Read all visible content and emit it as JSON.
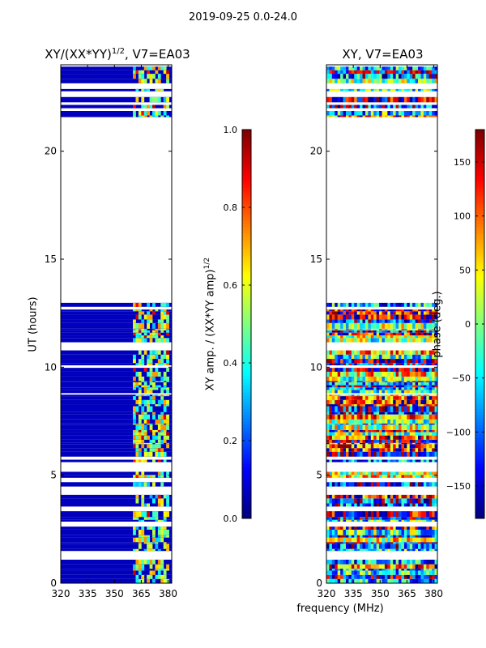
{
  "figure": {
    "suptitle": "2019-09-25 0.0-24.0",
    "common_xlabel": "frequency (MHz)"
  },
  "chart_data": [
    {
      "type": "heatmap",
      "title_text": "XY/(XX*YY)",
      "title_superscript": "1/2",
      "title_suffix": ", V7=EA03",
      "xlabel": "",
      "ylabel": "UT (hours)",
      "xlim": [
        320,
        382
      ],
      "ylim": [
        0,
        24
      ],
      "xticks": [
        320,
        335,
        350,
        365,
        380
      ],
      "yticks": [
        0,
        5,
        10,
        15,
        20
      ],
      "colormap": "jet",
      "colorbar": {
        "label_text": "XY amp. / (XX*YY amp)",
        "label_superscript": "1/2",
        "range": [
          0.0,
          1.0
        ],
        "ticks": [
          0.0,
          0.2,
          0.4,
          0.6,
          0.8,
          1.0
        ],
        "tick_labels": [
          "0.0",
          "0.2",
          "0.4",
          "0.6",
          "0.8",
          "1.0"
        ]
      },
      "data_gaps_hours": [
        [
          12.8,
          21.5
        ]
      ],
      "high_signal_band_mhz": [
        360,
        380
      ],
      "dominant_value": 0.0
    },
    {
      "type": "heatmap",
      "title_text": "XY, V7=EA03",
      "xlabel": "",
      "ylabel": "",
      "xlim": [
        320,
        382
      ],
      "ylim": [
        0,
        24
      ],
      "xticks": [
        320,
        335,
        350,
        365,
        380
      ],
      "yticks": [
        0,
        5,
        10,
        15,
        20
      ],
      "colormap": "jet",
      "colorbar": {
        "label_text": "phase (deg.)",
        "range": [
          -180,
          180
        ],
        "ticks": [
          -150,
          -100,
          -50,
          0,
          50,
          100,
          150
        ],
        "tick_labels": [
          "−150",
          "−100",
          "−50",
          "0",
          "50",
          "100",
          "150"
        ]
      },
      "data_gaps_hours": [
        [
          12.8,
          21.5
        ]
      ]
    }
  ]
}
